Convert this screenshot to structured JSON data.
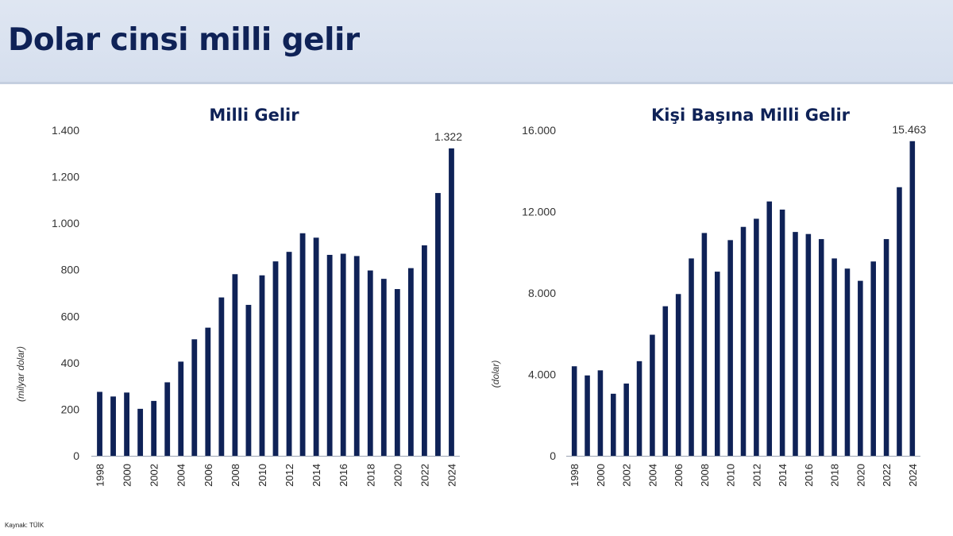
{
  "header": {
    "title": "Dolar cinsi milli gelir"
  },
  "source": "Kaynak: TÜİK",
  "chart_data": [
    {
      "type": "bar",
      "title": "Milli Gelir",
      "ylabel": "(milyar dolar)",
      "xlabel": "",
      "ylim": [
        0,
        1400
      ],
      "yticks": [
        0,
        200,
        400,
        600,
        800,
        1000,
        1200,
        1400
      ],
      "ytick_labels": [
        "0",
        "200",
        "400",
        "600",
        "800",
        "1.000",
        "1.200",
        "1.400"
      ],
      "categories": [
        "1998",
        "1999",
        "2000",
        "2001",
        "2002",
        "2003",
        "2004",
        "2005",
        "2006",
        "2007",
        "2008",
        "2009",
        "2010",
        "2011",
        "2012",
        "2013",
        "2014",
        "2015",
        "2016",
        "2017",
        "2018",
        "2019",
        "2020",
        "2021",
        "2022",
        "2023",
        "2024"
      ],
      "xtick_labels": [
        "1998",
        "2000",
        "2002",
        "2004",
        "2006",
        "2008",
        "2010",
        "2012",
        "2014",
        "2016",
        "2018",
        "2020",
        "2022",
        "2024"
      ],
      "values": [
        275,
        255,
        272,
        202,
        236,
        316,
        405,
        501,
        551,
        681,
        781,
        649,
        776,
        836,
        877,
        957,
        938,
        864,
        869,
        859,
        797,
        761,
        717,
        807,
        905,
        1130,
        1322
      ],
      "annotations": [
        {
          "category": "2024",
          "text": "1.322"
        }
      ],
      "grid": false,
      "legend": "none"
    },
    {
      "type": "bar",
      "title": "Kişi Başına Milli Gelir",
      "ylabel": "(dolar)",
      "xlabel": "",
      "ylim": [
        0,
        16000
      ],
      "yticks": [
        0,
        4000,
        8000,
        12000,
        16000
      ],
      "ytick_labels": [
        "0",
        "4.000",
        "8.000",
        "12.000",
        "16.000"
      ],
      "categories": [
        "1998",
        "1999",
        "2000",
        "2001",
        "2002",
        "2003",
        "2004",
        "2005",
        "2006",
        "2007",
        "2008",
        "2009",
        "2010",
        "2011",
        "2012",
        "2013",
        "2014",
        "2015",
        "2016",
        "2017",
        "2018",
        "2019",
        "2020",
        "2021",
        "2022",
        "2023",
        "2024"
      ],
      "xtick_labels": [
        "1998",
        "2000",
        "2002",
        "2004",
        "2006",
        "2008",
        "2010",
        "2012",
        "2014",
        "2016",
        "2018",
        "2020",
        "2022",
        "2024"
      ],
      "values": [
        4400,
        3950,
        4200,
        3050,
        3550,
        4650,
        5950,
        7350,
        7950,
        9700,
        10950,
        9050,
        10600,
        11250,
        11650,
        12500,
        12100,
        11000,
        10900,
        10650,
        9700,
        9200,
        8600,
        9550,
        10650,
        13200,
        15463
      ],
      "annotations": [
        {
          "category": "2024",
          "text": "15.463"
        }
      ],
      "grid": false,
      "legend": "none"
    }
  ],
  "colors": {
    "bar": "#0f2257",
    "title": "#0f2257",
    "header_bg": "#d9e1ef"
  }
}
